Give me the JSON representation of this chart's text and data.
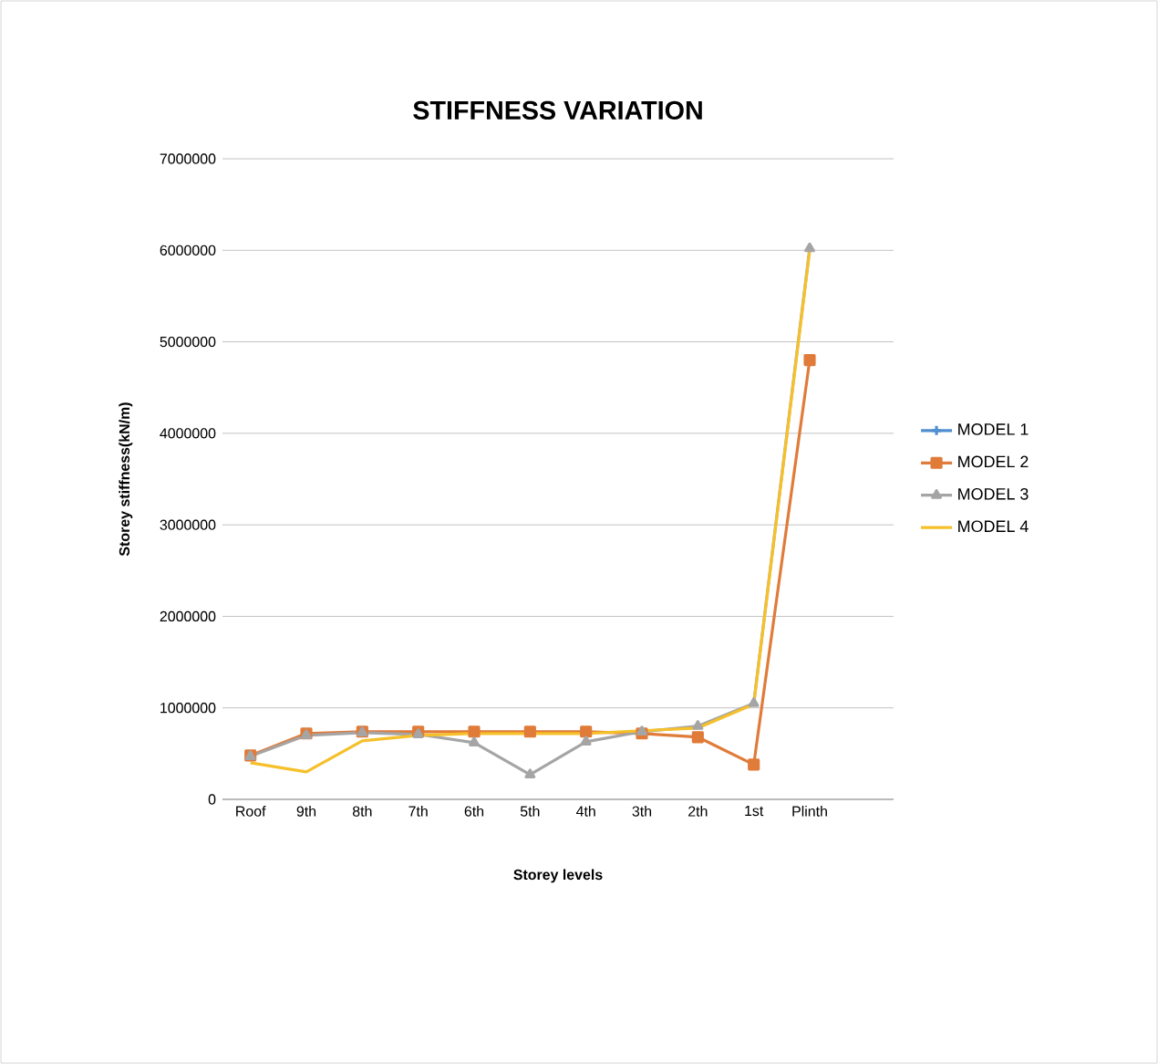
{
  "chart_data": {
    "type": "line",
    "title": "STIFFNESS VARIATION",
    "xlabel": "Storey levels",
    "ylabel": "Storey stiffness(kN/m)",
    "categories": [
      "Roof",
      "9th",
      "8th",
      "7th",
      "6th",
      "5th",
      "4th",
      "3th",
      "2th",
      "1st",
      "Plinth",
      null
    ],
    "series": [
      {
        "name": "MODEL 1",
        "color": "#4f8fd0",
        "marker": "cross",
        "values": [
          null,
          null,
          null,
          null,
          null,
          null,
          null,
          null,
          null,
          null,
          null,
          null
        ]
      },
      {
        "name": "MODEL 2",
        "color": "#e07b39",
        "marker": "square",
        "values": [
          480000,
          720000,
          740000,
          740000,
          740000,
          740000,
          740000,
          720000,
          680000,
          380000,
          4800000,
          null
        ]
      },
      {
        "name": "MODEL 3",
        "color": "#a5a5a5",
        "marker": "triangle",
        "values": [
          470000,
          700000,
          730000,
          710000,
          620000,
          270000,
          630000,
          740000,
          800000,
          1050000,
          6020000,
          null
        ]
      },
      {
        "name": "MODEL 4",
        "color": "#f5c02a",
        "marker": "none",
        "values": [
          400000,
          300000,
          640000,
          700000,
          720000,
          720000,
          720000,
          750000,
          780000,
          1040000,
          6000000,
          null
        ]
      }
    ],
    "ylim": [
      0,
      7000000
    ],
    "yticks": [
      0,
      1000000,
      2000000,
      3000000,
      4000000,
      5000000,
      6000000,
      7000000
    ],
    "grid": "y",
    "legend": "right",
    "line_style": "solid"
  }
}
